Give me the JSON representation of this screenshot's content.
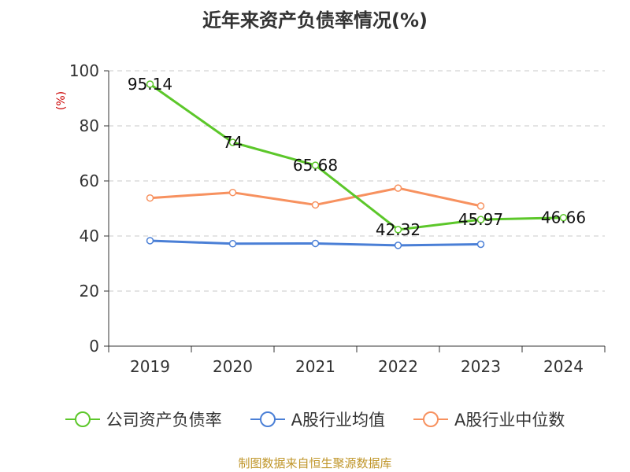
{
  "chart_data": {
    "type": "line",
    "title": "近年来资产负债率情况(%)",
    "ylabel": "(%)",
    "xlabel": "",
    "categories": [
      "2019",
      "2020",
      "2021",
      "2022",
      "2023",
      "2024"
    ],
    "ylim": [
      0,
      100
    ],
    "yticks": [
      0,
      20,
      40,
      60,
      80,
      100
    ],
    "grid": "horizontal-dashed",
    "legend_position": "bottom",
    "series": [
      {
        "name": "公司资产负债率",
        "color": "#5cc72a",
        "values": [
          95.14,
          74,
          65.68,
          42.32,
          45.97,
          46.66
        ],
        "labels": [
          "95.14",
          "74",
          "65.68",
          "42.32",
          "45.97",
          "46.66"
        ]
      },
      {
        "name": "A股行业均值",
        "color": "#4a7fd6",
        "values": [
          38.3,
          37.2,
          37.3,
          36.6,
          37.0,
          null
        ]
      },
      {
        "name": "A股行业中位数",
        "color": "#f7915f",
        "values": [
          53.8,
          55.8,
          51.3,
          57.4,
          50.9,
          null
        ]
      }
    ]
  },
  "footer": {
    "source": "制图数据来自恒生聚源数据库"
  }
}
